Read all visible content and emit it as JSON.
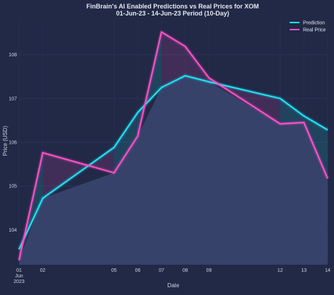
{
  "chart_data": {
    "type": "line",
    "title": "FinBrain's AI Enabled Predictions vs Real Prices for XOM",
    "subtitle": "01-Jun-23 - 14-Jun-23 Period (10-Day)",
    "xlabel": "Date",
    "ylabel": "Price (USD)",
    "x": [
      "2023-06-01",
      "2023-06-02",
      "2023-06-05",
      "2023-06-06",
      "2023-06-07",
      "2023-06-08",
      "2023-06-09",
      "2023-06-12",
      "2023-06-13",
      "2023-06-14"
    ],
    "x_tick_labels": [
      "01",
      "02",
      "05",
      "06",
      "07",
      "08",
      "09",
      "12",
      "13",
      "14"
    ],
    "x_tick_sublabel": [
      "Jun",
      "2023"
    ],
    "ylim": [
      103.2,
      108.8
    ],
    "xlim": [
      "2023-06-01",
      "2023-06-14"
    ],
    "yticks": [
      104,
      105,
      106,
      107,
      108
    ],
    "grid": true,
    "legend_position": "top-right",
    "series": [
      {
        "name": "Prediction",
        "color": "#1ee3f3",
        "values": [
          103.55,
          104.72,
          105.88,
          106.68,
          107.25,
          107.52,
          107.38,
          107.0,
          106.6,
          106.28
        ]
      },
      {
        "name": "Real Price",
        "color": "#ff4fc6",
        "values": [
          103.3,
          105.76,
          105.3,
          106.14,
          108.52,
          108.19,
          107.47,
          106.42,
          106.45,
          105.17
        ]
      }
    ]
  }
}
